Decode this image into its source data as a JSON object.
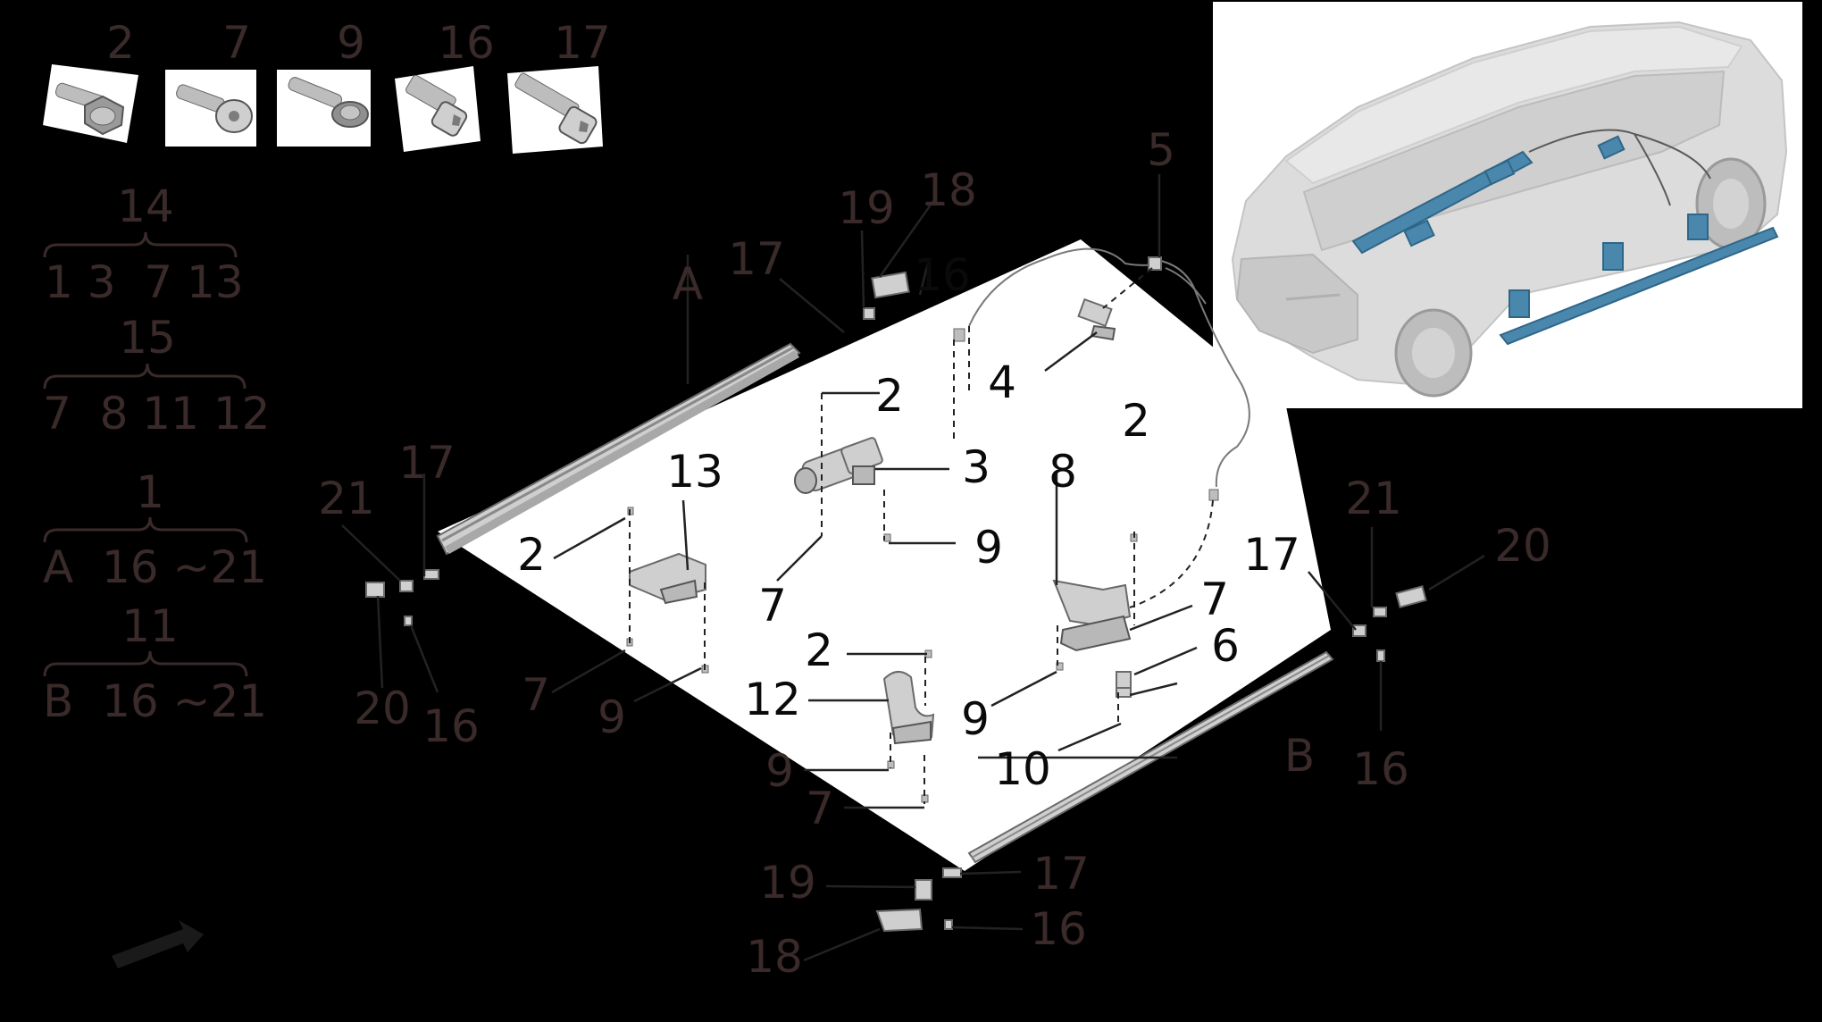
{
  "fastener_icons": [
    {
      "number": "2",
      "icon": "flange-hex-bolt-icon"
    },
    {
      "number": "7",
      "icon": "torx-pan-screw-icon"
    },
    {
      "number": "9",
      "icon": "flange-screw-icon"
    },
    {
      "number": "16",
      "icon": "socket-head-screw-icon"
    },
    {
      "number": "17",
      "icon": "long-socket-head-screw-icon"
    }
  ],
  "legend": [
    {
      "head": "14",
      "items": "1 3  7 13"
    },
    {
      "head": "15",
      "items": "7  8 11 12"
    },
    {
      "head": "1",
      "items": "A  16 ~21"
    },
    {
      "head": "11",
      "items": "B  16 ~21"
    }
  ],
  "callouts": {
    "A": "A",
    "B": "B",
    "n2a": "2",
    "n2b": "2",
    "n2c": "2",
    "n2d": "2",
    "n3": "3",
    "n4": "4",
    "n5": "5",
    "n6": "6",
    "n7a": "7",
    "n7b": "7",
    "n7c": "7",
    "n7d": "7",
    "n8": "8",
    "n9a": "9",
    "n9b": "9",
    "n9c": "9",
    "n9d": "9",
    "n10": "10",
    "n12": "12",
    "n13": "13",
    "n16a": "16",
    "n16b": "16",
    "n16c": "16",
    "n16d": "16",
    "n17a": "17",
    "n17b": "17",
    "n17c": "17",
    "n17d": "17",
    "n18a": "18",
    "n18b": "18",
    "n19a": "19",
    "n19b": "19",
    "n20a": "20",
    "n20b": "20",
    "n21a": "21",
    "n21b": "21"
  },
  "inset": {
    "highlight_color": "#3f7fa6",
    "car_color": "#d9d9d9"
  },
  "colors": {
    "background": "#000000",
    "diagram_panel": "#ffffff",
    "label_color": "#3a2a2a"
  }
}
